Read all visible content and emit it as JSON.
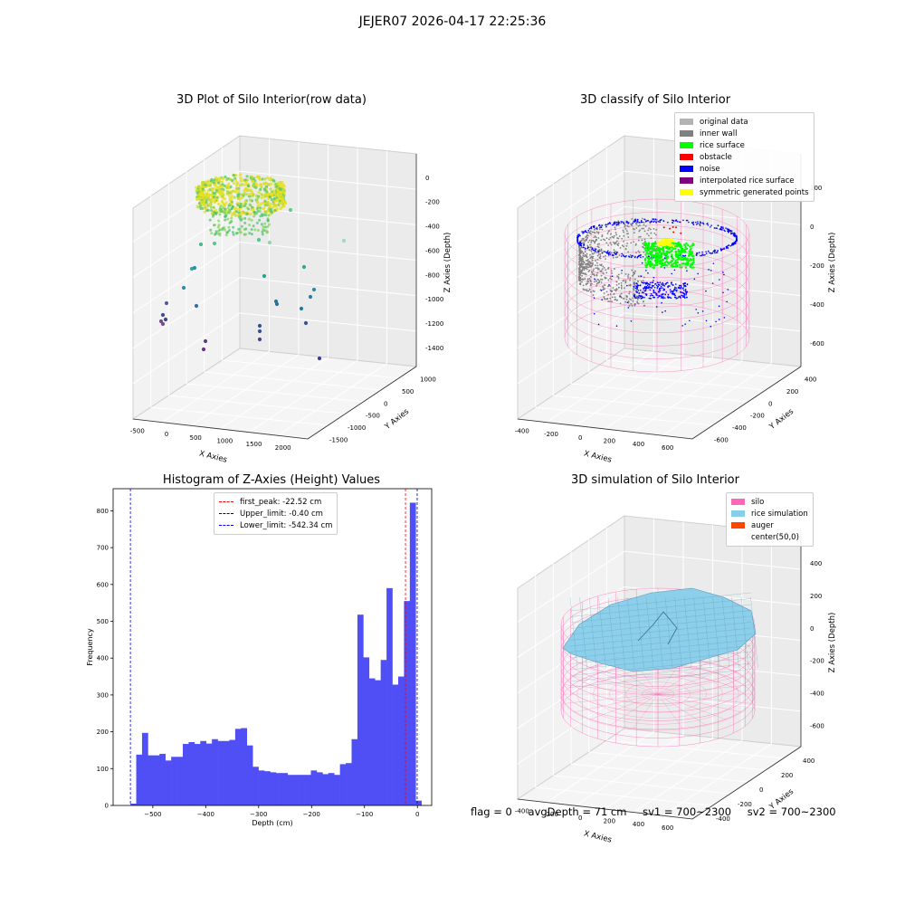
{
  "figure": {
    "suptitle": "JEJER07 2026-04-17 22:25:36",
    "titles": {
      "raw": "3D Plot of Silo Interior(row data)",
      "classify": "3D classify of Silo Interior",
      "hist": "Histogram of Z-Axies (Height) Values",
      "sim": "3D simulation of Silo Interior"
    }
  },
  "colors": {
    "original": "#b3b3b3",
    "inner_wall": "#808080",
    "rice_surface": "#00ff00",
    "obstacle": "#ff0000",
    "noise": "#0000ff",
    "interpolated": "#800080",
    "symmetric": "#ffff00",
    "silo": "#ff69b4",
    "rice_sim": "#87ceeb",
    "auger": "#ff4500",
    "hist_bar": "#4f4ff5"
  },
  "legend_classify": [
    {
      "label": "original data",
      "color_key": "original"
    },
    {
      "label": "inner wall",
      "color_key": "inner_wall"
    },
    {
      "label": "rice surface",
      "color_key": "rice_surface"
    },
    {
      "label": "obstacle",
      "color_key": "obstacle"
    },
    {
      "label": "noise",
      "color_key": "noise"
    },
    {
      "label": "interpolated rice surface",
      "color_key": "interpolated"
    },
    {
      "label": "symmetric generated points",
      "color_key": "symmetric"
    }
  ],
  "legend_hist": [
    {
      "label": "first_peak: -22.52 cm",
      "color": "#ff0000"
    },
    {
      "label": "Upper_limit: -0.40 cm",
      "color": "#00008b"
    },
    {
      "label": "Lower_limit: -542.34 cm",
      "color": "#0000ff"
    }
  ],
  "legend_sim": [
    {
      "label": "silo",
      "color_key": "silo"
    },
    {
      "label": "rice simulation",
      "color_key": "rice_sim"
    },
    {
      "label": "auger",
      "color_key": "auger"
    },
    {
      "label": "center(50,0)",
      "color": "#ffffff"
    }
  ],
  "axes3d": {
    "raw": {
      "xlabel": "X Axies",
      "ylabel": "Y Axies",
      "zlabel": "Z Axies (Depth)",
      "xticks": [
        "-500",
        "0",
        "500",
        "1000",
        "1500",
        "2000"
      ],
      "yticks": [
        "-1500",
        "-1000",
        "-500",
        "0",
        "500",
        "1000"
      ],
      "zticks": [
        "-1400",
        "-1200",
        "-1000",
        "-800",
        "-600",
        "-400",
        "-200",
        "0"
      ]
    },
    "classify": {
      "xlabel": "X Axies",
      "ylabel": "Y Axies",
      "zlabel": "Z Axies (Depth)",
      "xticks": [
        "-400",
        "-200",
        "0",
        "200",
        "400",
        "600"
      ],
      "yticks": [
        "-600",
        "-400",
        "-200",
        "0",
        "200",
        "400"
      ],
      "zticks": [
        "-600",
        "-400",
        "-200",
        "0",
        "200"
      ]
    },
    "sim": {
      "xlabel": "X Axies",
      "ylabel": "Y Axies",
      "zlabel": "Z Axies (Depth)",
      "xticks": [
        "-400",
        "-200",
        "0",
        "200",
        "400",
        "600"
      ],
      "yticks": [
        "-400",
        "-200",
        "0",
        "200",
        "400"
      ],
      "zticks": [
        "-600",
        "-400",
        "-200",
        "0",
        "200",
        "400"
      ]
    }
  },
  "chart_data": {
    "type": "bar",
    "title": "Histogram of Z-Axies (Height) Values",
    "xlabel": "Depth (cm)",
    "ylabel": "Frequency",
    "xlim": [
      -575,
      27
    ],
    "ylim": [
      0,
      860
    ],
    "xticks": [
      -500,
      -400,
      -300,
      -200,
      -100,
      0
    ],
    "yticks": [
      0,
      100,
      200,
      300,
      400,
      500,
      600,
      700,
      800
    ],
    "bin_start": -542.34,
    "bin_width": 11.0,
    "values": [
      5,
      138,
      197,
      136,
      136,
      140,
      122,
      132,
      132,
      167,
      172,
      167,
      175,
      168,
      180,
      175,
      175,
      178,
      208,
      210,
      163,
      105,
      95,
      93,
      90,
      88,
      88,
      83,
      83,
      83,
      83,
      95,
      90,
      85,
      88,
      83,
      112,
      115,
      180,
      518,
      402,
      345,
      340,
      395,
      590,
      328,
      350,
      555,
      822,
      13
    ],
    "vlines": [
      {
        "name": "first_peak: -22.52 cm",
        "x": -22.52,
        "color": "#ff0000"
      },
      {
        "name": "Upper_limit: -0.40 cm",
        "x": -0.4,
        "color": "#00008b"
      },
      {
        "name": "Lower_limit: -542.34 cm",
        "x": -542.34,
        "color": "#0000ff"
      }
    ]
  },
  "footer": {
    "flag": "flag = 0",
    "avg_depth": "avgDepth = 71 cm",
    "sv1": "sv1 = 700~2300",
    "sv2": "sv2 = 700~2300"
  }
}
